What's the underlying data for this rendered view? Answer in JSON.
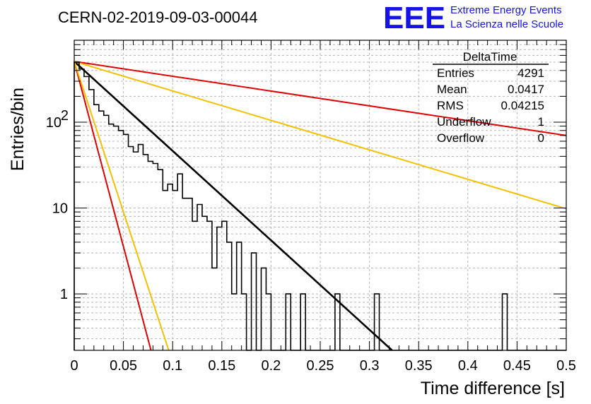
{
  "header": {
    "run_title": "CERN-02-2019-09-03-00044",
    "logo_mark": "EEE",
    "logo_line1": "Extreme Energy Events",
    "logo_line2": "La Scienza nelle Scuole"
  },
  "stats_box": {
    "title": "DeltaTime",
    "rows": [
      {
        "label": "Entries",
        "value": "4291"
      },
      {
        "label": "Mean",
        "value": "0.0417"
      },
      {
        "label": "RMS",
        "value": "0.04215"
      },
      {
        "label": "Underflow",
        "value": "1"
      },
      {
        "label": "Overflow",
        "value": "0"
      }
    ]
  },
  "colors": {
    "histogram": "#000000",
    "fit": "#000000",
    "red_curves": "#e00000",
    "yellow_curves": "#f5c000",
    "logo": "#1414e6",
    "grid": "#b4b4b4"
  },
  "chart_data": {
    "type": "line",
    "xlabel": "Time difference [s]",
    "ylabel": "Entries/bin",
    "xlim": [
      0,
      0.5
    ],
    "ylim": [
      0.22,
      900
    ],
    "yscale": "log",
    "grid": true,
    "x_ticks": [
      "0",
      "0.05",
      "0.1",
      "0.15",
      "0.2",
      "0.25",
      "0.3",
      "0.35",
      "0.4",
      "0.45",
      "0.5"
    ],
    "y_ticks": [
      {
        "value": 1,
        "label": "1",
        "sup": ""
      },
      {
        "value": 10,
        "label": "10",
        "sup": ""
      },
      {
        "value": 100,
        "label": "10",
        "sup": "2"
      }
    ],
    "histogram": {
      "bin_width": 0.005,
      "counts": [
        500,
        415,
        340,
        240,
        160,
        135,
        120,
        95,
        90,
        80,
        72,
        52,
        45,
        55,
        42,
        35,
        33,
        28,
        16,
        19,
        16,
        25,
        13,
        13,
        7,
        11,
        8,
        7,
        2,
        6,
        7,
        4,
        1,
        4,
        1,
        0.22,
        3,
        0.22,
        2,
        1,
        0.22,
        0.22,
        0.22,
        1,
        0.22,
        0.22,
        1,
        0.22,
        0.22,
        0.22,
        0.22,
        0.22,
        0.22,
        1,
        0.22,
        0.22,
        0.22,
        0.22,
        0.22,
        0.22,
        0.22,
        1,
        0.22,
        0.22,
        0.22,
        0.22,
        0.22,
        0.22,
        0.22,
        0.22,
        0.22,
        0.22,
        0.22,
        0.22,
        0.22,
        0.22,
        0.22,
        0.22,
        0.22,
        0.22,
        0.22,
        0.22,
        0.22,
        0.22,
        0.22,
        0.22,
        0.22,
        1,
        0.22,
        0.22,
        0.22,
        0.22,
        0.22,
        0.22,
        0.22,
        0.22,
        0.22,
        0.22,
        0.22,
        0.22
      ]
    },
    "series": [
      {
        "color": "#000000",
        "x": [
          0,
          0.323
        ],
        "y": [
          510,
          0.22
        ]
      },
      {
        "color": "#e00000",
        "x": [
          0,
          0.5
        ],
        "y": [
          510,
          70
        ]
      },
      {
        "color": "#f5c000",
        "x": [
          0,
          0.5
        ],
        "y": [
          510,
          9.8
        ]
      },
      {
        "color": "#e00000",
        "x": [
          0,
          0.078
        ],
        "y": [
          510,
          0.22
        ]
      },
      {
        "color": "#f5c000",
        "x": [
          0,
          0.096
        ],
        "y": [
          510,
          0.22
        ]
      }
    ]
  }
}
